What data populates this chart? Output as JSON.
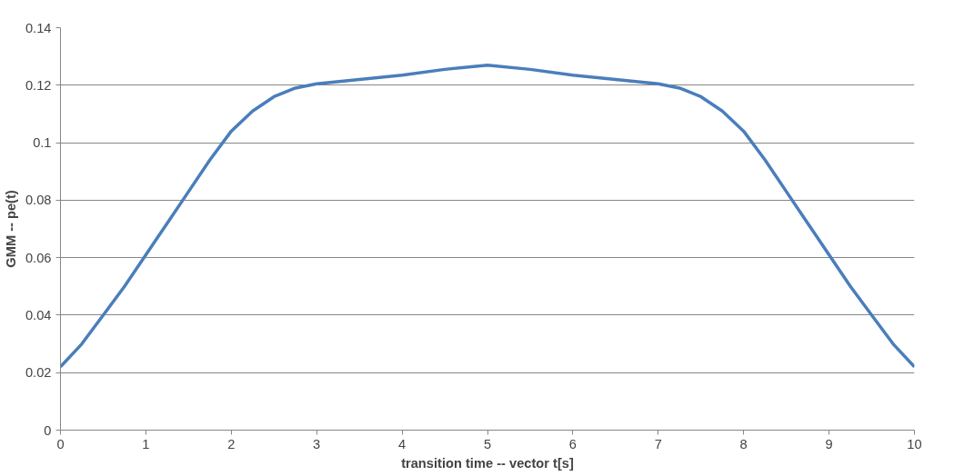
{
  "chart_data": {
    "type": "line",
    "xlabel": "transition time -- vector t[s]",
    "ylabel": "GMM -- pe(t)",
    "x": [
      0,
      0.25,
      0.5,
      0.75,
      1,
      1.25,
      1.5,
      1.75,
      2,
      2.25,
      2.5,
      2.75,
      3,
      3.5,
      4,
      4.5,
      5,
      5.5,
      6,
      6.5,
      7,
      7.25,
      7.5,
      7.75,
      8,
      8.25,
      8.5,
      8.75,
      9,
      9.25,
      9.5,
      9.75,
      10
    ],
    "series": [
      {
        "color": "#4a7ebb",
        "values": [
          0.022,
          0.03,
          0.04,
          0.05,
          0.061,
          0.072,
          0.083,
          0.094,
          0.104,
          0.111,
          0.116,
          0.119,
          0.1205,
          0.122,
          0.1235,
          0.1255,
          0.127,
          0.1255,
          0.1235,
          0.122,
          0.1205,
          0.119,
          0.116,
          0.111,
          0.104,
          0.094,
          0.083,
          0.072,
          0.061,
          0.05,
          0.04,
          0.03,
          0.022
        ]
      }
    ],
    "xlim": [
      0,
      10
    ],
    "xticks": [
      0,
      1,
      2,
      3,
      4,
      5,
      6,
      7,
      8,
      9,
      10
    ],
    "ylim": [
      0,
      0.14
    ],
    "yticks": [
      0,
      0.02,
      0.04,
      0.06,
      0.08,
      0.1,
      0.12,
      0.14
    ],
    "grid": "y",
    "marker": "none",
    "line_style": "solid"
  }
}
